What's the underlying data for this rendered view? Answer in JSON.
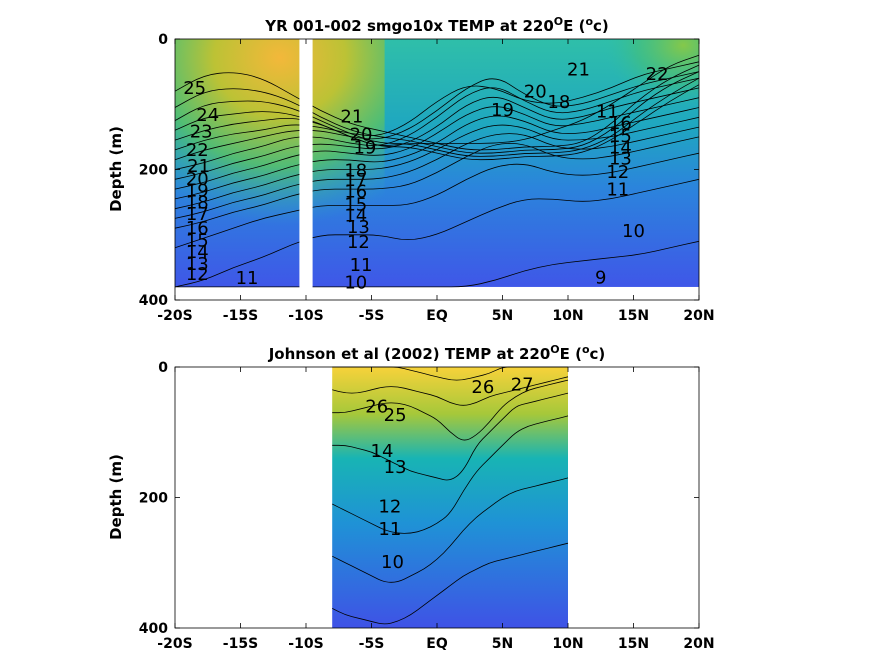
{
  "chart_data": [
    {
      "type": "heatmap",
      "title": "YR 001-002 smgo10x TEMP at 220",
      "title_sup": "O",
      "title_unit_open": "E (",
      "title_unit_sup": "o",
      "title_unit_close": "c)",
      "ylabel": "Depth (m)",
      "xlim": [
        -20,
        20
      ],
      "ylim": [
        0,
        400
      ],
      "x_ticks": [
        -20,
        -15,
        -10,
        -5,
        0,
        5,
        10,
        15,
        20
      ],
      "x_tick_labels": [
        "-20S",
        "-15S",
        "-10S",
        "-5S",
        "EQ",
        "5N",
        "10N",
        "15N",
        "20N"
      ],
      "y_ticks": [
        0,
        200,
        400
      ],
      "y_tick_labels": [
        "0",
        "200",
        "400"
      ],
      "data_extent": {
        "x": [
          -20,
          20
        ],
        "depth": [
          0,
          380
        ]
      },
      "gap": [
        -10.5,
        -9.5
      ],
      "contours": [
        {
          "label": "25",
          "depth": [
            80,
            55,
            50,
            60,
            85,
            110,
            130,
            140,
            150,
            160,
            170,
            170,
            165,
            165,
            160,
            130,
            90,
            60,
            40
          ]
        },
        {
          "label": "24",
          "depth": [
            105,
            80,
            75,
            80,
            95,
            120,
            140,
            150,
            155,
            165,
            175,
            175,
            170,
            170,
            165,
            140,
            100,
            70,
            50
          ]
        },
        {
          "label": "23",
          "depth": [
            125,
            100,
            95,
            95,
            105,
            125,
            145,
            160,
            160,
            170,
            180,
            180,
            175,
            175,
            170,
            150,
            115,
            85,
            60
          ]
        },
        {
          "label": "22",
          "depth": [
            140,
            120,
            115,
            110,
            115,
            130,
            150,
            165,
            165,
            175,
            185,
            185,
            180,
            180,
            175,
            155,
            125,
            95,
            70
          ]
        },
        {
          "label": "21",
          "depth": [
            155,
            140,
            130,
            125,
            120,
            130,
            150,
            165,
            160,
            160,
            160,
            160,
            155,
            140,
            125,
            100,
            70,
            40,
            25
          ]
        },
        {
          "label": "20",
          "depth": [
            170,
            155,
            145,
            140,
            130,
            135,
            145,
            150,
            130,
            95,
            70,
            75,
            95,
            100,
            90,
            75,
            55,
            45,
            35
          ]
        },
        {
          "label": "19",
          "depth": [
            185,
            170,
            160,
            150,
            140,
            140,
            150,
            155,
            140,
            110,
            75,
            55,
            85,
            105,
            100,
            85,
            70,
            60,
            50
          ]
        },
        {
          "label": "18",
          "depth": [
            200,
            190,
            175,
            165,
            150,
            150,
            160,
            165,
            150,
            120,
            85,
            70,
            95,
            115,
            110,
            95,
            80,
            70,
            60
          ]
        },
        {
          "label": "17",
          "depth": [
            215,
            205,
            190,
            180,
            165,
            160,
            165,
            170,
            160,
            135,
            100,
            85,
            105,
            125,
            120,
            105,
            95,
            85,
            75
          ]
        },
        {
          "label": "16",
          "depth": [
            230,
            220,
            205,
            195,
            180,
            170,
            175,
            180,
            170,
            145,
            115,
            100,
            115,
            135,
            130,
            120,
            110,
            100,
            90
          ]
        },
        {
          "label": "15",
          "depth": [
            245,
            235,
            220,
            210,
            195,
            185,
            185,
            190,
            180,
            160,
            130,
            115,
            125,
            145,
            145,
            135,
            125,
            115,
            105
          ]
        },
        {
          "label": "14",
          "depth": [
            260,
            250,
            235,
            225,
            210,
            200,
            200,
            200,
            190,
            170,
            145,
            130,
            135,
            155,
            155,
            150,
            140,
            130,
            120
          ]
        },
        {
          "label": "13",
          "depth": [
            275,
            265,
            250,
            240,
            225,
            215,
            215,
            215,
            205,
            185,
            160,
            145,
            145,
            165,
            170,
            165,
            155,
            145,
            135
          ]
        },
        {
          "label": "12",
          "depth": [
            290,
            280,
            265,
            255,
            240,
            230,
            230,
            230,
            225,
            205,
            180,
            160,
            160,
            180,
            185,
            180,
            170,
            160,
            150
          ]
        },
        {
          "label": "11",
          "depth": [
            320,
            305,
            290,
            275,
            265,
            255,
            255,
            255,
            255,
            240,
            215,
            195,
            190,
            205,
            210,
            205,
            195,
            185,
            175
          ]
        },
        {
          "label": "10",
          "depth": [
            380,
            370,
            350,
            335,
            315,
            300,
            300,
            300,
            310,
            300,
            280,
            260,
            245,
            245,
            250,
            245,
            235,
            225,
            215
          ]
        },
        {
          "label": "9",
          "depth": [
            380,
            380,
            380,
            380,
            380,
            380,
            380,
            380,
            380,
            380,
            380,
            370,
            355,
            345,
            340,
            335,
            330,
            320,
            310
          ]
        }
      ],
      "contour_labels": [
        {
          "text": "25",
          "x": -18.5,
          "depth": 77
        },
        {
          "text": "24",
          "x": -17.5,
          "depth": 118
        },
        {
          "text": "23",
          "x": -18.0,
          "depth": 143
        },
        {
          "text": "22",
          "x": -18.3,
          "depth": 172
        },
        {
          "text": "21",
          "x": -18.2,
          "depth": 196
        },
        {
          "text": "20",
          "x": -18.3,
          "depth": 216
        },
        {
          "text": "19",
          "x": -18.3,
          "depth": 234
        },
        {
          "text": "18",
          "x": -18.3,
          "depth": 252
        },
        {
          "text": "17",
          "x": -18.3,
          "depth": 270
        },
        {
          "text": "16",
          "x": -18.3,
          "depth": 291
        },
        {
          "text": "15",
          "x": -18.3,
          "depth": 310
        },
        {
          "text": "14",
          "x": -18.3,
          "depth": 328
        },
        {
          "text": "13",
          "x": -18.3,
          "depth": 346
        },
        {
          "text": "12",
          "x": -18.3,
          "depth": 362
        },
        {
          "text": "11",
          "x": -14.5,
          "depth": 368
        },
        {
          "text": "21",
          "x": -6.5,
          "depth": 120
        },
        {
          "text": "20",
          "x": -5.8,
          "depth": 148
        },
        {
          "text": "19",
          "x": -5.5,
          "depth": 168
        },
        {
          "text": "18",
          "x": -6.2,
          "depth": 203
        },
        {
          "text": "17",
          "x": -6.2,
          "depth": 218
        },
        {
          "text": "16",
          "x": -6.2,
          "depth": 235
        },
        {
          "text": "15",
          "x": -6.2,
          "depth": 255
        },
        {
          "text": "14",
          "x": -6.2,
          "depth": 272
        },
        {
          "text": "13",
          "x": -6.0,
          "depth": 290
        },
        {
          "text": "12",
          "x": -6.0,
          "depth": 313
        },
        {
          "text": "11",
          "x": -5.8,
          "depth": 348
        },
        {
          "text": "10",
          "x": -6.2,
          "depth": 375
        },
        {
          "text": "19",
          "x": 5.0,
          "depth": 110
        },
        {
          "text": "20",
          "x": 7.5,
          "depth": 82
        },
        {
          "text": "18",
          "x": 9.3,
          "depth": 98
        },
        {
          "text": "21",
          "x": 10.8,
          "depth": 48
        },
        {
          "text": "22",
          "x": 16.8,
          "depth": 55
        },
        {
          "text": "11",
          "x": 13.0,
          "depth": 113
        },
        {
          "text": "16",
          "x": 14.0,
          "depth": 130
        },
        {
          "text": "15",
          "x": 14.0,
          "depth": 150
        },
        {
          "text": "14",
          "x": 14.0,
          "depth": 168
        },
        {
          "text": "13",
          "x": 14.0,
          "depth": 185
        },
        {
          "text": "12",
          "x": 13.8,
          "depth": 205
        },
        {
          "text": "11",
          "x": 13.8,
          "depth": 232
        },
        {
          "text": "10",
          "x": 15.0,
          "depth": 296
        },
        {
          "text": "9",
          "x": 12.5,
          "depth": 367
        }
      ]
    },
    {
      "type": "heatmap",
      "title": "Johnson et al (2002) TEMP at 220",
      "title_sup": "O",
      "title_unit_open": "E (",
      "title_unit_sup": "o",
      "title_unit_close": "c)",
      "ylabel": "Depth (m)",
      "xlim": [
        -20,
        20
      ],
      "ylim": [
        0,
        400
      ],
      "x_ticks": [
        -20,
        -15,
        -10,
        -5,
        0,
        5,
        10,
        15,
        20
      ],
      "x_tick_labels": [
        "-20S",
        "-15S",
        "-10S",
        "-5S",
        "EQ",
        "5N",
        "10N",
        "15N",
        "20N"
      ],
      "y_ticks": [
        0,
        200,
        400
      ],
      "y_tick_labels": [
        "0",
        "200",
        "400"
      ],
      "data_extent": {
        "x": [
          -8,
          10
        ],
        "depth": [
          0,
          400
        ]
      },
      "contours": [
        {
          "label": "27",
          "depth": [
            0,
            0,
            0,
            0,
            0,
            0,
            5,
            10,
            15,
            20,
            20,
            15,
            10,
            0,
            0,
            0,
            0,
            0,
            0
          ]
        },
        {
          "label": "26",
          "depth": [
            35,
            40,
            40,
            35,
            30,
            30,
            35,
            40,
            45,
            55,
            60,
            55,
            45,
            40,
            35,
            30,
            25,
            20,
            15
          ]
        },
        {
          "label": "25",
          "depth": [
            70,
            70,
            65,
            60,
            55,
            55,
            60,
            70,
            80,
            100,
            115,
            105,
            85,
            60,
            45,
            35,
            30,
            25,
            20
          ]
        },
        {
          "label": "13",
          "depth": [
            120,
            120,
            125,
            130,
            140,
            150,
            160,
            165,
            170,
            175,
            160,
            120,
            100,
            80,
            60,
            55,
            50,
            45,
            40
          ]
        },
        {
          "label": "12",
          "depth": [
            210,
            220,
            230,
            240,
            250,
            255,
            255,
            250,
            240,
            225,
            190,
            160,
            140,
            120,
            100,
            90,
            85,
            80,
            75
          ]
        },
        {
          "label": "11",
          "depth": [
            290,
            300,
            310,
            320,
            330,
            330,
            320,
            310,
            295,
            275,
            250,
            230,
            215,
            200,
            190,
            185,
            180,
            175,
            170
          ]
        },
        {
          "label": "10",
          "depth": [
            370,
            380,
            385,
            390,
            395,
            390,
            380,
            365,
            350,
            335,
            320,
            310,
            300,
            295,
            290,
            285,
            280,
            275,
            270
          ]
        }
      ],
      "contour_labels": [
        {
          "text": "26",
          "x": -4.6,
          "depth": 62
        },
        {
          "text": "25",
          "x": -3.2,
          "depth": 75
        },
        {
          "text": "26",
          "x": 3.5,
          "depth": 32
        },
        {
          "text": "27",
          "x": 6.5,
          "depth": 28
        },
        {
          "text": "14",
          "x": -4.2,
          "depth": 130
        },
        {
          "text": "13",
          "x": -3.2,
          "depth": 155
        },
        {
          "text": "12",
          "x": -3.6,
          "depth": 215
        },
        {
          "text": "11",
          "x": -3.6,
          "depth": 250
        },
        {
          "text": "10",
          "x": -3.4,
          "depth": 300
        }
      ]
    }
  ]
}
